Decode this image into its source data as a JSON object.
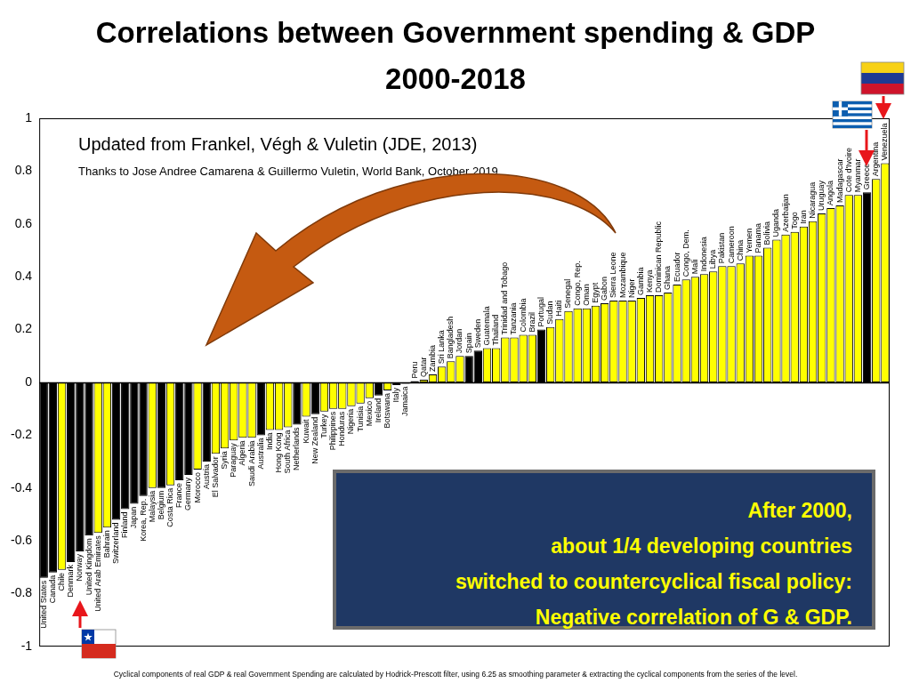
{
  "chart_data": {
    "type": "bar",
    "title": [
      "Correlations between Government spending & GDP",
      "2000-2018"
    ],
    "annotations": {
      "source": "Updated from Frankel, Végh & Vuletin (JDE, 2013)",
      "credit": "Thanks to Jose Andree Camarena  & Guillermo Vuletin,  World Bank,  October 2019",
      "callout": [
        "After 2000,",
        "about 1/4 developing countries",
        "switched to countercyclical fiscal policy:",
        "Negative correlation of G & GDP."
      ],
      "footnote": "Cyclical components of real GDP & real Government Spending are calculated by Hodrick-Prescott filter, using 6.25 as smoothing parameter & extracting the cyclical components from the series of the level."
    },
    "categories": [
      "United States",
      "Canada",
      "Chile",
      "Denmark",
      "Norway",
      "United Kingdom",
      "United Arab Emirates",
      "Bahrain",
      "Switzerland",
      "Finland",
      "Japan",
      "Korea, Rep.",
      "Malaysia",
      "Belgium",
      "Costa Rica",
      "France",
      "Germany",
      "Morocco",
      "Austria",
      "El Salvador",
      "Syria",
      "Paraguay",
      "Algeria",
      "Saudi Arabia",
      "Australia",
      "India",
      "Hong Kong",
      "South Africa",
      "Netherlands",
      "Kuwait",
      "New Zealand",
      "Turkey",
      "Philippines",
      "Honduras",
      "Nigeria",
      "Tunisia",
      "Mexico",
      "Ireland",
      "Botswana",
      "Italy",
      "Jamaica",
      "Peru",
      "Qatar",
      "Zambia",
      "Sri Lanka",
      "Bangladesh",
      "Jordan",
      "Spain",
      "Sweden",
      "Guatemala",
      "Thailand",
      "Trinidad and Tobago",
      "Tanzania",
      "Colombia",
      "Brazil",
      "Portugal",
      "Sudan",
      "Haiti",
      "Senegal",
      "Congo, Rep.",
      "Oman",
      "Egypt",
      "Gabon",
      "Sierra Leone",
      "Mozambique",
      "Niger",
      "Gambia",
      "Kenya",
      "Dominican Republic",
      "Ghana",
      "Ecuador",
      "Congo, Dem.",
      "Mali",
      "Indonesia",
      "Libya",
      "Pakistan",
      "Cameroon",
      "China",
      "Yemen",
      "Panama",
      "Bolivia",
      "Uganda",
      "Azerbaijan",
      "Togo",
      "Iran",
      "Nicaragua",
      "Uruguay",
      "Angola",
      "Madagascar",
      "Cote d'Ivoire",
      "Myanmar",
      "Greece",
      "Argentina",
      "Venezuela"
    ],
    "values": [
      -0.74,
      -0.72,
      -0.71,
      -0.68,
      -0.64,
      -0.58,
      -0.57,
      -0.55,
      -0.52,
      -0.48,
      -0.46,
      -0.43,
      -0.4,
      -0.4,
      -0.39,
      -0.37,
      -0.35,
      -0.33,
      -0.3,
      -0.27,
      -0.25,
      -0.22,
      -0.21,
      -0.21,
      -0.2,
      -0.18,
      -0.18,
      -0.17,
      -0.16,
      -0.13,
      -0.12,
      -0.11,
      -0.1,
      -0.1,
      -0.09,
      -0.08,
      -0.06,
      -0.05,
      -0.03,
      -0.01,
      -0.005,
      0.005,
      0.01,
      0.03,
      0.06,
      0.08,
      0.1,
      0.1,
      0.12,
      0.13,
      0.13,
      0.17,
      0.17,
      0.18,
      0.18,
      0.2,
      0.21,
      0.24,
      0.27,
      0.28,
      0.28,
      0.29,
      0.3,
      0.31,
      0.31,
      0.31,
      0.32,
      0.33,
      0.33,
      0.34,
      0.37,
      0.39,
      0.4,
      0.41,
      0.42,
      0.44,
      0.44,
      0.45,
      0.48,
      0.48,
      0.51,
      0.54,
      0.56,
      0.57,
      0.59,
      0.61,
      0.64,
      0.66,
      0.67,
      0.71,
      0.71,
      0.72,
      0.77,
      0.83
    ],
    "colors": [
      "#000000",
      "#000000",
      "#ffff00",
      "#000000",
      "#000000",
      "#000000",
      "#ffff00",
      "#ffff00",
      "#000000",
      "#000000",
      "#000000",
      "#000000",
      "#ffff00",
      "#000000",
      "#ffff00",
      "#000000",
      "#000000",
      "#ffff00",
      "#000000",
      "#ffff00",
      "#ffff00",
      "#ffff00",
      "#ffff00",
      "#ffff00",
      "#000000",
      "#ffff00",
      "#ffff00",
      "#ffff00",
      "#000000",
      "#ffff00",
      "#000000",
      "#ffff00",
      "#ffff00",
      "#ffff00",
      "#ffff00",
      "#ffff00",
      "#ffff00",
      "#000000",
      "#ffff00",
      "#000000",
      "#ffff00",
      "#ffff00",
      "#ffff00",
      "#ffff00",
      "#ffff00",
      "#ffff00",
      "#ffff00",
      "#000000",
      "#000000",
      "#ffff00",
      "#ffff00",
      "#ffff00",
      "#ffff00",
      "#ffff00",
      "#ffff00",
      "#000000",
      "#ffff00",
      "#ffff00",
      "#ffff00",
      "#ffff00",
      "#ffff00",
      "#ffff00",
      "#ffff00",
      "#ffff00",
      "#ffff00",
      "#ffff00",
      "#ffff00",
      "#ffff00",
      "#ffff00",
      "#ffff00",
      "#ffff00",
      "#ffff00",
      "#ffff00",
      "#ffff00",
      "#ffff00",
      "#ffff00",
      "#ffff00",
      "#ffff00",
      "#ffff00",
      "#ffff00",
      "#ffff00",
      "#ffff00",
      "#ffff00",
      "#ffff00",
      "#ffff00",
      "#ffff00",
      "#ffff00",
      "#ffff00",
      "#ffff00",
      "#ffff00",
      "#ffff00",
      "#000000",
      "#ffff00",
      "#ffff00"
    ],
    "ylim": [
      -1,
      1
    ],
    "yticks": [
      -1,
      -0.8,
      -0.6,
      -0.4,
      -0.2,
      0,
      0.2,
      0.4,
      0.6,
      0.8,
      1
    ],
    "grid": false,
    "tick_labels": "y"
  }
}
